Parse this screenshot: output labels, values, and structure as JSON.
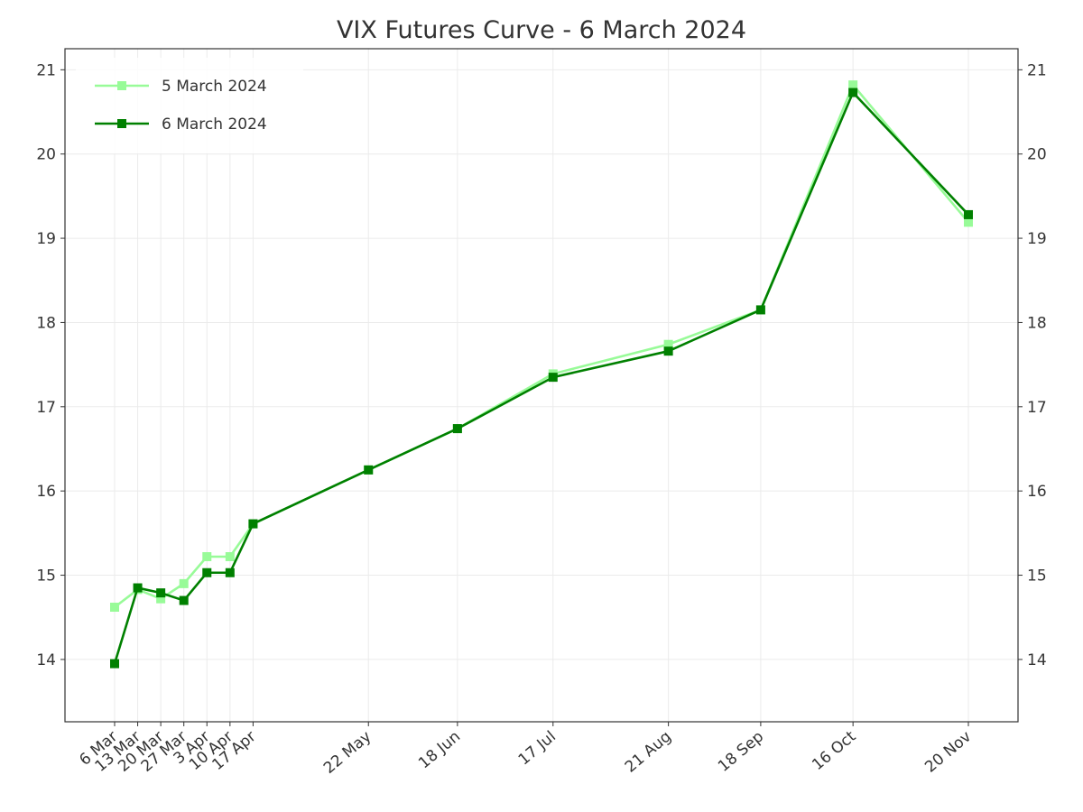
{
  "chart_data": {
    "type": "line",
    "title": "VIX Futures Curve - 6 March 2024",
    "xlabel": "",
    "ylabel": "",
    "categories": [
      "6 Mar",
      "13 Mar",
      "20 Mar",
      "27 Mar",
      "3 Apr",
      "10 Apr",
      "17 Apr",
      "22 May",
      "18 Jun",
      "17 Jul",
      "21 Aug",
      "18 Sep",
      "16 Oct",
      "20 Nov"
    ],
    "x_days_offset": [
      0,
      7,
      14,
      21,
      28,
      35,
      42,
      77,
      104,
      133,
      168,
      196,
      224,
      259
    ],
    "series": [
      {
        "name": "5 March 2024",
        "color": "#98fb98",
        "marker": "square",
        "values": [
          14.62,
          14.83,
          14.72,
          14.9,
          15.22,
          15.22,
          15.61,
          16.25,
          16.74,
          17.39,
          17.74,
          18.15,
          20.82,
          19.19
        ]
      },
      {
        "name": "6 March 2024",
        "color": "#008000",
        "marker": "square",
        "values": [
          13.95,
          14.85,
          14.79,
          14.7,
          15.03,
          15.03,
          15.61,
          16.25,
          16.74,
          17.35,
          17.66,
          18.15,
          20.73,
          19.28
        ]
      }
    ],
    "yticks": [
      14,
      15,
      16,
      17,
      18,
      19,
      20,
      21
    ],
    "ylim": [
      13.26,
      21.25
    ],
    "grid": true,
    "legend_position": "upper left",
    "y_axis_mirrored_right": true
  },
  "style": {
    "axis_color": "#333333",
    "grid_color": "#ebebeb",
    "background": "#ffffff"
  }
}
